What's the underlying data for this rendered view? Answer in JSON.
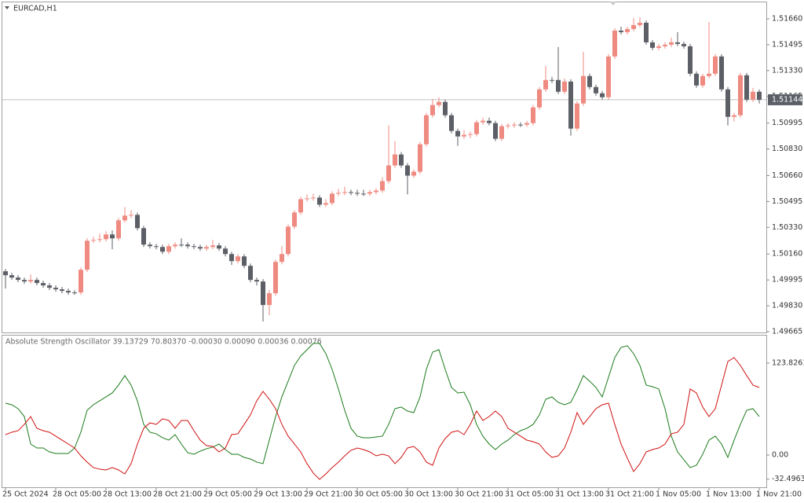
{
  "chart_data": [
    {
      "type": "candlestick",
      "title": "EURCAD,H1",
      "categories": [
        "25 Oct 2024",
        null,
        null,
        null,
        null,
        null,
        null,
        null,
        "28 Oct 05:00",
        null,
        null,
        null,
        null,
        null,
        null,
        null,
        "28 Oct 13:00",
        null,
        null,
        null,
        null,
        null,
        null,
        null,
        "28 Oct 21:00",
        null,
        null,
        null,
        null,
        null,
        null,
        null,
        "29 Oct 05:00",
        null,
        null,
        null,
        null,
        null,
        null,
        null,
        "29 Oct 13:00",
        null,
        null,
        null,
        null,
        null,
        null,
        null,
        "29 Oct 21:00",
        null,
        null,
        null,
        null,
        null,
        null,
        null,
        "30 Oct 05:00",
        null,
        null,
        null,
        null,
        null,
        null,
        null,
        "30 Oct 13:00",
        null,
        null,
        null,
        null,
        null,
        null,
        null,
        "30 Oct 21:00",
        null,
        null,
        null,
        null,
        null,
        null,
        null,
        "31 Oct 05:00",
        null,
        null,
        null,
        null,
        null,
        null,
        null,
        "31 Oct 13:00",
        null,
        null,
        null,
        null,
        null,
        null,
        null,
        "31 Oct 21:00",
        null,
        null,
        null,
        null,
        null,
        null,
        null,
        "1 Nov 05:00",
        null,
        null,
        null,
        null,
        null,
        null,
        null,
        "1 Nov 13:00",
        null,
        null,
        null,
        null,
        null,
        null,
        null,
        "1 Nov 21:00"
      ],
      "open": [
        1.5005,
        1.50025,
        1.5001,
        1.49995,
        1.49985,
        1.49995,
        1.49975,
        1.4996,
        1.49945,
        1.49935,
        1.49925,
        1.49915,
        1.49915,
        1.5006,
        1.50245,
        1.5025,
        1.50255,
        1.50285,
        1.5026,
        1.50375,
        1.50405,
        1.5041,
        1.50325,
        1.5022,
        1.5021,
        1.50205,
        1.50175,
        1.5021,
        1.5022,
        1.5022,
        1.5021,
        1.50205,
        1.50195,
        1.50205,
        1.50215,
        1.50195,
        1.5016,
        1.50115,
        1.50145,
        1.50085,
        1.49995,
        1.49985,
        1.49835,
        1.4991,
        1.5011,
        1.5016,
        1.50335,
        1.50425,
        1.5051,
        1.50515,
        1.5052,
        1.50475,
        1.50485,
        1.50545,
        1.5055,
        1.50555,
        1.5055,
        1.50545,
        1.50545,
        1.50555,
        1.50565,
        1.50625,
        1.50725,
        1.50795,
        1.50725,
        1.5066,
        1.50685,
        1.5086,
        1.51045,
        1.5111,
        1.5113,
        1.51045,
        1.50945,
        1.5091,
        1.5092,
        1.50925,
        1.51,
        1.5101,
        1.50995,
        1.50895,
        1.50975,
        1.5098,
        1.50985,
        1.50985,
        1.50995,
        1.51095,
        1.5121,
        1.5127,
        1.5127,
        1.51195,
        1.5126,
        1.5096,
        1.5112,
        1.51295,
        1.51225,
        1.51185,
        1.5116,
        1.5142,
        1.51585,
        1.51575,
        1.51595,
        1.5162,
        1.51635,
        1.5151,
        1.51475,
        1.51485,
        1.51495,
        1.5151,
        1.515,
        1.51485,
        1.5131,
        1.51235,
        1.51295,
        1.5131,
        1.5142,
        1.5121,
        1.51035,
        1.51045,
        1.513,
        1.51145,
        1.51195
      ],
      "high": [
        1.50065,
        1.5004,
        1.50025,
        1.5001,
        1.5003,
        1.5001,
        1.4999,
        1.49975,
        1.4996,
        1.4995,
        1.4994,
        1.4993,
        1.50075,
        1.5026,
        1.5027,
        1.5029,
        1.50305,
        1.5031,
        1.5039,
        1.5046,
        1.5044,
        1.50425,
        1.5034,
        1.50235,
        1.50225,
        1.5022,
        1.50225,
        1.50235,
        1.5026,
        1.50235,
        1.50225,
        1.5022,
        1.5022,
        1.5025,
        1.5023,
        1.5021,
        1.50175,
        1.5016,
        1.5016,
        1.501,
        1.5001,
        1.5,
        1.4993,
        1.50125,
        1.5021,
        1.5035,
        1.5044,
        1.50525,
        1.5054,
        1.50545,
        1.50535,
        1.5051,
        1.5056,
        1.50575,
        1.5059,
        1.5057,
        1.5057,
        1.5057,
        1.5057,
        1.5058,
        1.5065,
        1.5098,
        1.5088,
        1.5081,
        1.5074,
        1.507,
        1.50875,
        1.5106,
        1.5115,
        1.5116,
        1.51145,
        1.5106,
        1.5096,
        1.5095,
        1.5094,
        1.51015,
        1.5103,
        1.5103,
        1.5101,
        1.5099,
        1.50995,
        1.51,
        1.51,
        1.5101,
        1.5111,
        1.51225,
        1.5136,
        1.5129,
        1.5148,
        1.5128,
        1.51275,
        1.51135,
        1.5145,
        1.5131,
        1.5124,
        1.512,
        1.51435,
        1.516,
        1.5161,
        1.5161,
        1.51665,
        1.5167,
        1.5165,
        1.51525,
        1.515,
        1.5151,
        1.5154,
        1.51575,
        1.51515,
        1.515,
        1.51325,
        1.5131,
        1.5164,
        1.51435,
        1.51435,
        1.51225,
        1.5106,
        1.51315,
        1.51315,
        1.5122,
        1.5121
      ],
      "low": [
        1.4994,
        1.49995,
        1.4998,
        1.4997,
        1.4997,
        1.4996,
        1.49945,
        1.4993,
        1.4992,
        1.4991,
        1.499,
        1.499,
        1.499,
        1.50045,
        1.5023,
        1.50235,
        1.5024,
        1.5019,
        1.50245,
        1.5036,
        1.5039,
        1.5031,
        1.50205,
        1.50195,
        1.5019,
        1.5016,
        1.5016,
        1.50195,
        1.50205,
        1.50195,
        1.5019,
        1.5018,
        1.5018,
        1.5019,
        1.5018,
        1.50145,
        1.5009,
        1.501,
        1.5007,
        1.4998,
        1.4996,
        1.4973,
        1.4977,
        1.49895,
        1.50095,
        1.50145,
        1.5032,
        1.5041,
        1.50495,
        1.505,
        1.5046,
        1.5046,
        1.5047,
        1.5053,
        1.50535,
        1.50535,
        1.5053,
        1.5053,
        1.5053,
        1.5054,
        1.5055,
        1.5061,
        1.5071,
        1.5071,
        1.5054,
        1.50645,
        1.5067,
        1.50845,
        1.5103,
        1.51095,
        1.5103,
        1.5093,
        1.5085,
        1.50895,
        1.509,
        1.5091,
        1.50985,
        1.5098,
        1.5088,
        1.5088,
        1.5096,
        1.50965,
        1.5097,
        1.5097,
        1.5098,
        1.5108,
        1.51195,
        1.5125,
        1.5118,
        1.5118,
        1.50915,
        1.50945,
        1.51105,
        1.5121,
        1.5117,
        1.51145,
        1.51145,
        1.51405,
        1.5156,
        1.5156,
        1.5158,
        1.51605,
        1.51495,
        1.5146,
        1.5146,
        1.5147,
        1.5148,
        1.51485,
        1.5147,
        1.51295,
        1.5122,
        1.5122,
        1.5128,
        1.51295,
        1.51195,
        1.5098,
        1.51005,
        1.5103,
        1.5113,
        1.5113,
        1.5112
      ],
      "close": [
        1.50025,
        1.5001,
        1.49995,
        1.49985,
        1.49995,
        1.49975,
        1.4996,
        1.49945,
        1.49935,
        1.49925,
        1.49915,
        1.49915,
        1.5006,
        1.50245,
        1.5025,
        1.50255,
        1.50285,
        1.5026,
        1.50375,
        1.50405,
        1.5041,
        1.50325,
        1.5022,
        1.5021,
        1.50205,
        1.50175,
        1.5021,
        1.5022,
        1.5022,
        1.5021,
        1.50205,
        1.50195,
        1.50205,
        1.50215,
        1.50195,
        1.5016,
        1.50115,
        1.50145,
        1.50085,
        1.49995,
        1.49985,
        1.49835,
        1.4991,
        1.5011,
        1.5016,
        1.50335,
        1.50425,
        1.5051,
        1.50515,
        1.5052,
        1.50475,
        1.50485,
        1.50545,
        1.5055,
        1.50555,
        1.5055,
        1.50545,
        1.50545,
        1.50555,
        1.50565,
        1.50625,
        1.50725,
        1.50795,
        1.50725,
        1.5066,
        1.50685,
        1.5086,
        1.51045,
        1.5111,
        1.5113,
        1.51045,
        1.50945,
        1.5091,
        1.5092,
        1.50925,
        1.51,
        1.5101,
        1.50995,
        1.50895,
        1.50975,
        1.5098,
        1.50985,
        1.50985,
        1.50995,
        1.51095,
        1.5121,
        1.5127,
        1.5127,
        1.51195,
        1.5126,
        1.5096,
        1.5112,
        1.51295,
        1.51225,
        1.51185,
        1.5116,
        1.5142,
        1.51585,
        1.51575,
        1.51595,
        1.5162,
        1.51635,
        1.5151,
        1.51475,
        1.51485,
        1.51495,
        1.5151,
        1.515,
        1.51485,
        1.5131,
        1.51235,
        1.51295,
        1.5131,
        1.5142,
        1.5121,
        1.51035,
        1.51045,
        1.513,
        1.51145,
        1.51195,
        1.51144
      ],
      "up_color": "#ef8a80",
      "down_color": "#5c5f66",
      "current_price": 1.51144,
      "ylim": [
        1.4966,
        1.5177
      ],
      "yticks": [
        {
          "value": 1.5166,
          "label": "1.51660"
        },
        {
          "value": 1.51495,
          "label": "1.51495"
        },
        {
          "value": 1.5133,
          "label": "1.51330"
        },
        {
          "value": 1.51165,
          "label": "1.51165"
        },
        {
          "value": 1.50995,
          "label": "1.50995"
        },
        {
          "value": 1.5083,
          "label": "1.50830"
        },
        {
          "value": 1.5066,
          "label": "1.50660"
        },
        {
          "value": 1.50495,
          "label": "1.50495"
        },
        {
          "value": 1.5033,
          "label": "1.50330"
        },
        {
          "value": 1.5016,
          "label": "1.50160"
        },
        {
          "value": 1.49995,
          "label": "1.49995"
        },
        {
          "value": 1.4983,
          "label": "1.49830"
        },
        {
          "value": 1.49665,
          "label": "1.49665"
        }
      ]
    },
    {
      "type": "line",
      "title": "Absolute Strength Oscillator 39.13729 70.80370 -0.00030 0.00090 0.00036 0.00076",
      "series": [
        {
          "color": "#1a7a1a",
          "values": [
            69.8,
            67.7,
            62.4,
            51.8,
            14.8,
            9.5,
            9.5,
            4.2,
            2.1,
            2.1,
            2.1,
            9.5,
            30.7,
            60.3,
            67.7,
            73.0,
            78.3,
            83.6,
            94.2,
            106.9,
            94.2,
            73.0,
            41.3,
            30.7,
            28.6,
            23.3,
            20.1,
            27.5,
            14.8,
            3.2,
            1.1,
            5.3,
            8.5,
            10.6,
            14.8,
            7.4,
            1.1,
            1.1,
            -3.2,
            -5.3,
            -9.5,
            -11.6,
            20.1,
            51.8,
            78.3,
            99.5,
            120.6,
            133.3,
            141.8,
            150.3,
            150.3,
            136.5,
            115.3,
            88.9,
            60.3,
            36.0,
            25.4,
            23.3,
            23.3,
            24.3,
            25.4,
            41.3,
            62.4,
            64.6,
            59.2,
            57.1,
            78.3,
            115.3,
            138.6,
            141.8,
            115.3,
            91.0,
            83.6,
            84.6,
            67.7,
            41.3,
            25.4,
            14.8,
            7.4,
            14.8,
            20.1,
            27.5,
            32.8,
            36.0,
            41.3,
            54.0,
            75.1,
            78.3,
            70.9,
            67.7,
            70.9,
            87.8,
            106.9,
            99.5,
            91.0,
            78.3,
            104.7,
            131.2,
            144.9,
            147.1,
            136.5,
            120.6,
            94.2,
            92.0,
            88.9,
            62.4,
            25.4,
            4.2,
            -6.3,
            -16.9,
            -13.8,
            1.1,
            20.1,
            25.4,
            14.8,
            -3.2,
            20.1,
            41.3,
            60.3,
            62.4,
            51.8
          ]
        },
        {
          "color": "#d01010",
          "values": [
            27.5,
            30.7,
            32.8,
            41.3,
            51.8,
            36.0,
            32.8,
            30.7,
            25.4,
            20.1,
            14.8,
            9.5,
            -1.1,
            -9.5,
            -16.9,
            -19.0,
            -20.1,
            -16.9,
            -20.1,
            -25.4,
            -11.6,
            14.8,
            36.0,
            43.4,
            41.3,
            48.7,
            46.6,
            36.0,
            46.6,
            46.6,
            32.8,
            20.1,
            12.7,
            11.6,
            4.2,
            9.5,
            27.5,
            28.6,
            41.3,
            54.0,
            73.0,
            85.7,
            75.1,
            62.4,
            41.3,
            25.4,
            14.8,
            4.2,
            -11.6,
            -24.3,
            -32.8,
            -25.4,
            -16.9,
            -9.5,
            -1.1,
            6.3,
            9.5,
            7.4,
            4.2,
            -1.1,
            1.1,
            -1.1,
            -11.6,
            -3.2,
            9.5,
            11.6,
            4.2,
            -9.5,
            -13.8,
            9.5,
            22.2,
            30.7,
            32.8,
            27.5,
            41.3,
            59.2,
            46.6,
            51.8,
            59.2,
            51.8,
            36.0,
            30.7,
            25.4,
            20.1,
            18.0,
            14.8,
            4.2,
            -3.2,
            -1.1,
            9.5,
            30.7,
            57.1,
            41.3,
            51.8,
            62.4,
            67.7,
            69.8,
            41.3,
            14.8,
            -4.2,
            -22.2,
            -11.6,
            4.2,
            7.4,
            9.5,
            14.8,
            28.6,
            30.7,
            41.3,
            88.9,
            83.6,
            64.6,
            51.8,
            62.4,
            94.2,
            126.0,
            131.2,
            120.6,
            106.9,
            94.2,
            91.0
          ]
        }
      ],
      "ylim": [
        -43.4,
        160.8
      ],
      "yticks": [
        123.82619,
        {
          "value": 0,
          "label": "0.00"
        },
        -32.49631
      ]
    }
  ]
}
